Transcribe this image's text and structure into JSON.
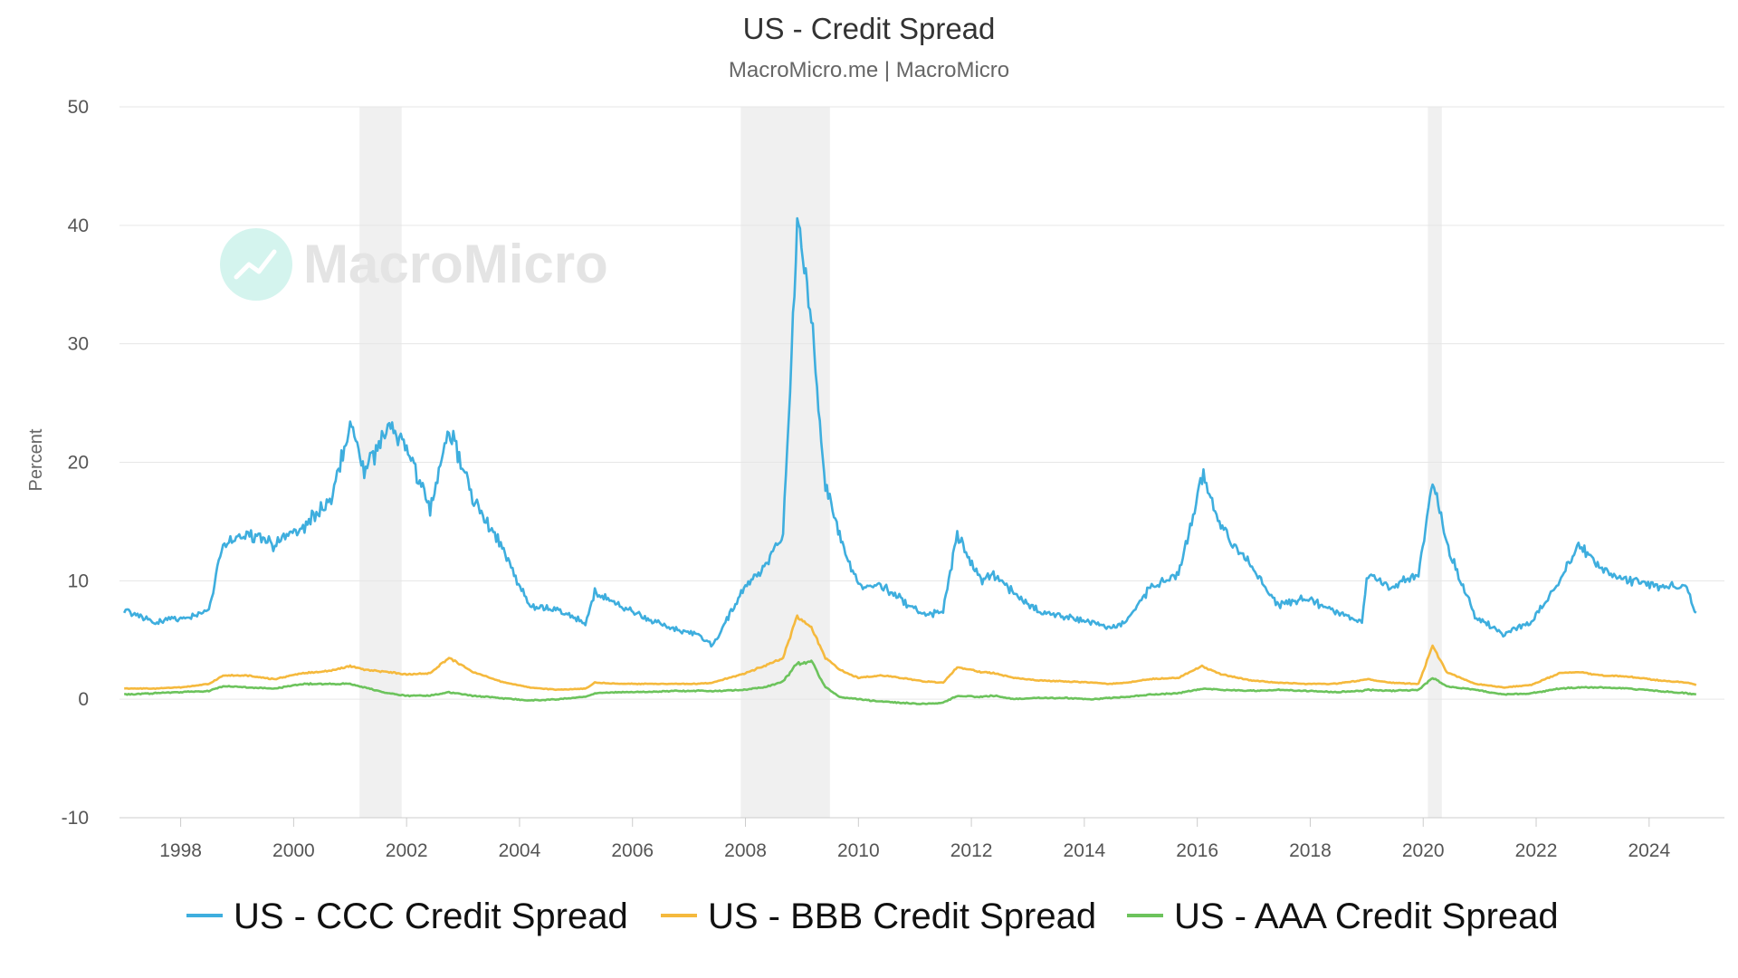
{
  "chart_data": {
    "type": "line",
    "title": "US - Credit Spread",
    "subtitle": "MacroMicro.me | MacroMicro",
    "ylabel": "Percent",
    "xlabel": "",
    "ylim": [
      -10,
      50
    ],
    "xlim": [
      "1996-12-01",
      "2025-05-01"
    ],
    "yticks": [
      -10,
      0,
      10,
      20,
      30,
      40,
      50
    ],
    "xticks": [
      "1998",
      "2000",
      "2002",
      "2004",
      "2006",
      "2008",
      "2010",
      "2012",
      "2014",
      "2016",
      "2018",
      "2020",
      "2022",
      "2024"
    ],
    "grid": "horizontal",
    "legend_position": "bottom",
    "recessions": [
      {
        "start": "2001-03-01",
        "end": "2001-11-30"
      },
      {
        "start": "2007-12-01",
        "end": "2009-06-30"
      },
      {
        "start": "2020-02-01",
        "end": "2020-04-30"
      }
    ],
    "x": [
      "1997-01",
      "1997-07",
      "1998-01",
      "1998-07",
      "1998-10",
      "1999-03",
      "1999-09",
      "2000-03",
      "2000-09",
      "2001-01",
      "2001-04",
      "2001-09",
      "2002-01",
      "2002-06",
      "2002-10",
      "2003-03",
      "2003-09",
      "2004-03",
      "2004-09",
      "2005-03",
      "2005-05",
      "2005-10",
      "2006-03",
      "2006-09",
      "2007-03",
      "2007-06",
      "2008-01",
      "2008-05",
      "2008-09",
      "2008-12",
      "2009-03",
      "2009-06",
      "2009-09",
      "2010-01",
      "2010-06",
      "2010-10",
      "2011-03",
      "2011-07",
      "2011-10",
      "2012-03",
      "2012-06",
      "2012-10",
      "2013-03",
      "2013-09",
      "2014-03",
      "2014-06",
      "2014-10",
      "2015-03",
      "2015-09",
      "2016-02",
      "2016-06",
      "2016-12",
      "2017-06",
      "2017-12",
      "2018-06",
      "2018-12",
      "2019-01",
      "2019-06",
      "2019-12",
      "2020-03",
      "2020-06",
      "2020-12",
      "2021-06",
      "2021-12",
      "2022-06",
      "2022-10",
      "2023-03",
      "2023-09",
      "2024-03",
      "2024-09",
      "2024-11"
    ],
    "series": [
      {
        "name": "US - CCC Credit Spread",
        "color": "#3eaede",
        "values": [
          7.5,
          6.5,
          6.8,
          7.5,
          13.0,
          14.0,
          13.0,
          14.5,
          17.0,
          23.5,
          19.0,
          23.0,
          21.0,
          16.0,
          23.0,
          17.0,
          13.0,
          8.0,
          7.5,
          6.5,
          9.0,
          8.0,
          7.0,
          6.0,
          5.5,
          4.5,
          9.5,
          11.0,
          14.0,
          40.0,
          32.0,
          18.0,
          14.0,
          9.5,
          9.5,
          8.5,
          7.0,
          7.5,
          14.0,
          10.0,
          10.5,
          9.0,
          7.5,
          7.0,
          6.5,
          6.0,
          6.5,
          9.5,
          10.5,
          19.0,
          14.5,
          11.5,
          8.0,
          8.5,
          7.5,
          6.5,
          10.5,
          9.5,
          10.5,
          18.5,
          13.0,
          7.0,
          5.5,
          6.5,
          10.0,
          13.0,
          11.0,
          10.0,
          9.5,
          9.5,
          7.3
        ]
      },
      {
        "name": "US - BBB Credit Spread",
        "color": "#f5b93d",
        "values": [
          0.9,
          0.9,
          1.0,
          1.3,
          2.0,
          2.0,
          1.7,
          2.2,
          2.4,
          2.8,
          2.5,
          2.3,
          2.1,
          2.2,
          3.5,
          2.3,
          1.5,
          1.0,
          0.8,
          0.9,
          1.4,
          1.3,
          1.3,
          1.3,
          1.3,
          1.4,
          2.2,
          2.8,
          3.5,
          7.0,
          6.0,
          3.5,
          2.5,
          1.8,
          2.0,
          1.8,
          1.5,
          1.4,
          2.7,
          2.3,
          2.2,
          1.8,
          1.6,
          1.5,
          1.4,
          1.3,
          1.4,
          1.7,
          1.8,
          2.8,
          2.1,
          1.6,
          1.4,
          1.3,
          1.3,
          1.6,
          1.7,
          1.4,
          1.3,
          4.5,
          2.3,
          1.3,
          1.0,
          1.2,
          2.2,
          2.3,
          2.0,
          1.9,
          1.6,
          1.4,
          1.2
        ]
      },
      {
        "name": "US - AAA Credit Spread",
        "color": "#6cc35c",
        "values": [
          0.4,
          0.5,
          0.6,
          0.7,
          1.1,
          1.0,
          0.9,
          1.3,
          1.3,
          1.3,
          1.0,
          0.5,
          0.3,
          0.3,
          0.6,
          0.3,
          0.1,
          -0.1,
          0.0,
          0.2,
          0.5,
          0.6,
          0.6,
          0.7,
          0.7,
          0.7,
          0.8,
          1.0,
          1.5,
          3.0,
          3.2,
          1.0,
          0.2,
          0.0,
          -0.2,
          -0.3,
          -0.4,
          -0.3,
          0.3,
          0.2,
          0.3,
          0.0,
          0.1,
          0.1,
          0.0,
          0.1,
          0.2,
          0.4,
          0.5,
          0.9,
          0.8,
          0.7,
          0.8,
          0.7,
          0.6,
          0.7,
          0.8,
          0.7,
          0.8,
          1.8,
          1.1,
          0.8,
          0.4,
          0.5,
          0.9,
          1.0,
          1.0,
          0.9,
          0.7,
          0.5,
          0.4
        ]
      }
    ]
  },
  "watermark": {
    "text": "MacroMicro"
  }
}
